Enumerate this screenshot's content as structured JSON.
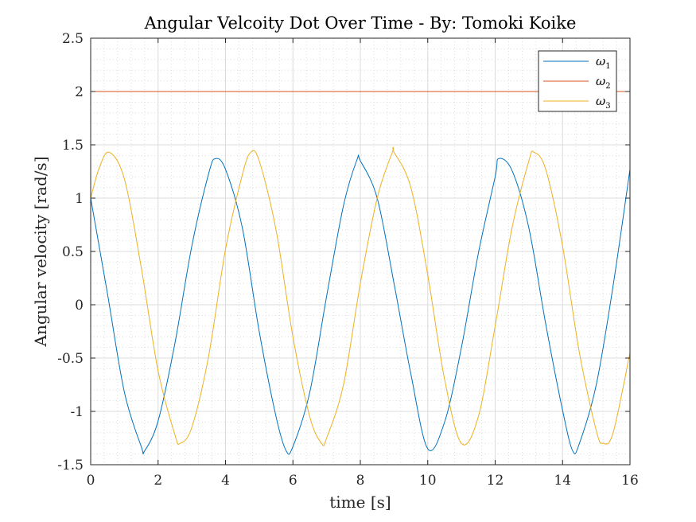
{
  "chart_data": {
    "type": "line",
    "title": "Angular Velcoity Dot Over Time - By: Tomoki Koike",
    "xlabel": "time [s]",
    "ylabel": "Angular velocity [rad/s]",
    "xlim": [
      0,
      16
    ],
    "ylim": [
      -1.5,
      2.5
    ],
    "xticks": [
      0,
      2,
      4,
      6,
      8,
      10,
      12,
      14,
      16
    ],
    "xtick_labels": [
      "0",
      "2",
      "4",
      "6",
      "8",
      "10",
      "12",
      "14",
      "16"
    ],
    "yticks": [
      -1.5,
      -1,
      -0.5,
      0,
      0.5,
      1,
      1.5,
      2,
      2.5
    ],
    "ytick_labels": [
      "-1.5",
      "-1",
      "-0.5",
      "0",
      "0.5",
      "1",
      "1.5",
      "2",
      "2.5"
    ],
    "grid": true,
    "minor_grid": true,
    "legend_position": "top-right",
    "series": [
      {
        "name": "ω",
        "subscript": "1",
        "color": "#0072BD",
        "x": [
          0,
          0.5,
          1.0,
          1.5,
          1.6,
          2.0,
          2.5,
          3.0,
          3.5,
          3.7,
          4.0,
          4.5,
          5.0,
          5.5,
          5.8,
          6.0,
          6.5,
          7.0,
          7.5,
          7.9,
          8.0,
          8.5,
          9.0,
          9.5,
          10.0,
          10.5,
          11.0,
          11.5,
          12.0,
          12.1,
          12.5,
          13.0,
          13.5,
          14.0,
          14.3,
          14.5,
          15.0,
          15.5,
          16.0
        ],
        "y": [
          1.0,
          0.1,
          -0.82,
          -1.33,
          -1.37,
          -1.09,
          -0.36,
          0.55,
          1.23,
          1.37,
          1.27,
          0.72,
          -0.25,
          -1.05,
          -1.37,
          -1.33,
          -0.82,
          0.08,
          0.93,
          1.36,
          1.35,
          1.0,
          0.2,
          -0.65,
          -1.35,
          -1.1,
          -0.4,
          0.48,
          1.2,
          1.37,
          1.26,
          0.72,
          -0.18,
          -0.99,
          -1.37,
          -1.3,
          -0.75,
          0.18,
          1.27
        ]
      },
      {
        "name": "ω",
        "subscript": "2",
        "color": "#D95319",
        "x": [
          0,
          16
        ],
        "y": [
          2.0,
          2.0
        ]
      },
      {
        "name": "ω",
        "subscript": "3",
        "color": "#EDB120",
        "x": [
          0,
          0.25,
          0.55,
          1.0,
          1.5,
          2.0,
          2.5,
          2.65,
          3.0,
          3.5,
          4.0,
          4.5,
          4.75,
          5.0,
          5.5,
          6.0,
          6.5,
          6.85,
          7.0,
          7.5,
          8.0,
          8.5,
          8.95,
          9.0,
          9.5,
          10.0,
          10.5,
          11.0,
          11.5,
          12.0,
          12.5,
          13.0,
          13.15,
          13.5,
          14.0,
          14.5,
          15.0,
          15.2,
          15.5,
          16.0
        ],
        "y": [
          1.0,
          1.28,
          1.43,
          1.18,
          0.35,
          -0.62,
          -1.22,
          -1.3,
          -1.15,
          -0.48,
          0.52,
          1.22,
          1.43,
          1.35,
          0.7,
          -0.3,
          -1.05,
          -1.3,
          -1.25,
          -0.75,
          0.2,
          1.0,
          1.43,
          1.43,
          1.1,
          0.28,
          -0.7,
          -1.3,
          -1.05,
          -0.2,
          0.72,
          1.35,
          1.43,
          1.27,
          0.55,
          -0.45,
          -1.18,
          -1.3,
          -1.2,
          -0.45
        ]
      }
    ]
  }
}
